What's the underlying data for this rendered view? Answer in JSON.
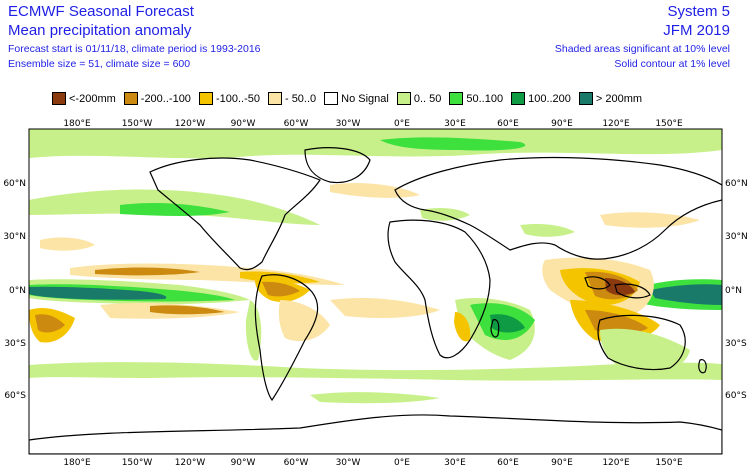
{
  "header": {
    "title": "ECMWF Seasonal Forecast",
    "subtitle": "Mean precipitation anomaly",
    "forecast_info": "Forecast start is 01/11/18, climate period is 1993-2016",
    "ensemble_info": "Ensemble size = 51, climate size = 600",
    "system": "System 5",
    "period": "JFM 2019",
    "sig_shaded": "Shaded areas significant at 10% level",
    "sig_contour": "Solid contour at 1% level"
  },
  "legend": [
    {
      "label": "<-200mm",
      "color": "#8b3a0f"
    },
    {
      "label": "-200..-100",
      "color": "#cc8a10"
    },
    {
      "label": "-100..-50",
      "color": "#f5c400"
    },
    {
      "label": "- 50..0",
      "color": "#fbe4a6"
    },
    {
      "label": "No Signal",
      "color": "#ffffff"
    },
    {
      "label": "0.. 50",
      "color": "#c8f08a"
    },
    {
      "label": "50..100",
      "color": "#3ee03e"
    },
    {
      "label": "100..200",
      "color": "#0f9a44"
    },
    {
      "label": "> 200mm",
      "color": "#1a7a6a"
    }
  ],
  "axes": {
    "lon_labels": [
      "180°E",
      "150°W",
      "120°W",
      "90°W",
      "60°W",
      "30°W",
      "0°E",
      "30°E",
      "60°E",
      "90°E",
      "120°E",
      "150°E"
    ],
    "lat_labels": [
      "60°N",
      "30°N",
      "0°N",
      "30°S",
      "60°S"
    ]
  },
  "colors": {
    "frame": "#000000",
    "coast": "#000000"
  }
}
